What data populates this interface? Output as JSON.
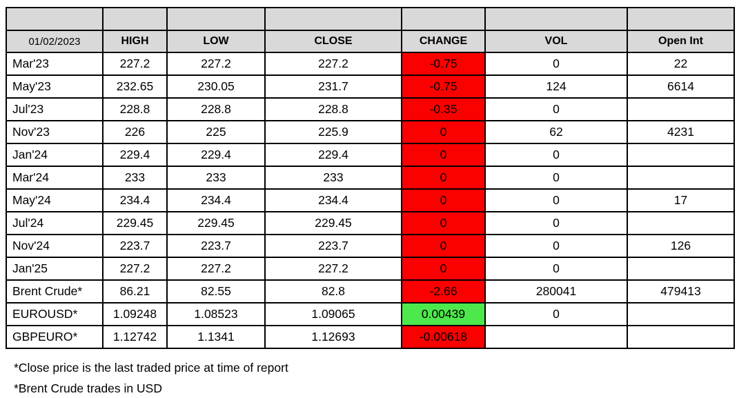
{
  "table": {
    "date_header": "01/02/2023",
    "columns": [
      "HIGH",
      "LOW",
      "CLOSE",
      "CHANGE",
      "VOL",
      "Open Int"
    ],
    "rows": [
      {
        "label": "Mar'23",
        "high": "227.2",
        "low": "227.2",
        "close": "227.2",
        "change": "-0.75",
        "change_state": "negative",
        "vol": "0",
        "open_int": "22"
      },
      {
        "label": "May'23",
        "high": "232.65",
        "low": "230.05",
        "close": "231.7",
        "change": "-0.75",
        "change_state": "negative",
        "vol": "124",
        "open_int": "6614"
      },
      {
        "label": "Jul'23",
        "high": "228.8",
        "low": "228.8",
        "close": "228.8",
        "change": "-0.35",
        "change_state": "negative",
        "vol": "0",
        "open_int": ""
      },
      {
        "label": "Nov'23",
        "high": "226",
        "low": "225",
        "close": "225.9",
        "change": "0",
        "change_state": "negative",
        "vol": "62",
        "open_int": "4231"
      },
      {
        "label": "Jan'24",
        "high": "229.4",
        "low": "229.4",
        "close": "229.4",
        "change": "0",
        "change_state": "negative",
        "vol": "0",
        "open_int": ""
      },
      {
        "label": "Mar'24",
        "high": "233",
        "low": "233",
        "close": "233",
        "change": "0",
        "change_state": "negative",
        "vol": "0",
        "open_int": ""
      },
      {
        "label": "May'24",
        "high": "234.4",
        "low": "234.4",
        "close": "234.4",
        "change": "0",
        "change_state": "negative",
        "vol": "0",
        "open_int": "17"
      },
      {
        "label": "Jul'24",
        "high": "229.45",
        "low": "229.45",
        "close": "229.45",
        "change": "0",
        "change_state": "negative",
        "vol": "0",
        "open_int": ""
      },
      {
        "label": "Nov'24",
        "high": "223.7",
        "low": "223.7",
        "close": "223.7",
        "change": "0",
        "change_state": "negative",
        "vol": "0",
        "open_int": "126"
      },
      {
        "label": "Jan'25",
        "high": "227.2",
        "low": "227.2",
        "close": "227.2",
        "change": "0",
        "change_state": "negative",
        "vol": "0",
        "open_int": ""
      },
      {
        "label": "Brent Crude*",
        "high": "86.21",
        "low": "82.55",
        "close": "82.8",
        "change": "-2.66",
        "change_state": "negative",
        "vol": "280041",
        "open_int": "479413"
      },
      {
        "label": "EUROUSD*",
        "high": "1.09248",
        "low": "1.08523",
        "close": "1.09065",
        "change": "0.00439",
        "change_state": "positive",
        "vol": "0",
        "open_int": ""
      },
      {
        "label": "GBPEURO*",
        "high": "1.12742",
        "low": "1.1341",
        "close": "1.12693",
        "change": "-0.00618",
        "change_state": "negative",
        "vol": "",
        "open_int": ""
      }
    ]
  },
  "footnotes": [
    "*Close price is the last traded price at time of report",
    "*Brent Crude trades in USD"
  ],
  "colors": {
    "negative_bg": "#fb0000",
    "positive_bg": "#4de94c",
    "header_bg": "#d9d9d9",
    "border": "#000000"
  }
}
